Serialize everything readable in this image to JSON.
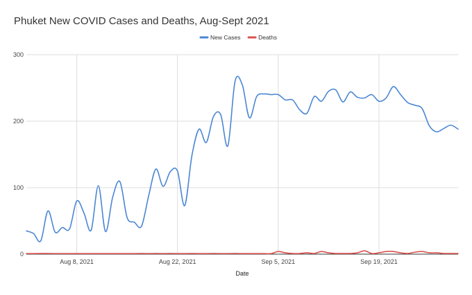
{
  "chart_data": {
    "type": "line",
    "title": "Phuket New COVID Cases and Deaths, Aug-Sept 2021",
    "xlabel": "Date",
    "ylabel": "",
    "ylim": [
      0,
      300
    ],
    "yticks": [
      "0",
      "100",
      "200",
      "300"
    ],
    "xticks": [
      "Aug 8, 2021",
      "Aug 22, 2021",
      "Sep 5, 2021",
      "Sep 19, 2021"
    ],
    "x_start": "2021-08-01",
    "x_end": "2021-09-30",
    "legend_position": "top",
    "grid": true,
    "series": [
      {
        "name": "New Cases",
        "color": "#4a86d4",
        "values": [
          35,
          31,
          20,
          65,
          33,
          40,
          38,
          80,
          62,
          36,
          103,
          34,
          86,
          109,
          55,
          48,
          42,
          88,
          128,
          102,
          124,
          125,
          73,
          148,
          188,
          168,
          207,
          210,
          163,
          260,
          255,
          205,
          237,
          241,
          240,
          240,
          232,
          232,
          217,
          212,
          237,
          230,
          245,
          247,
          229,
          244,
          236,
          235,
          240,
          230,
          235,
          252,
          240,
          228,
          224,
          219,
          193,
          184,
          189,
          194,
          188
        ]
      },
      {
        "name": "Deaths",
        "color": "#d9534f",
        "values": [
          0,
          0,
          1,
          1,
          0,
          0,
          0,
          0,
          0,
          0,
          0,
          0,
          0,
          0,
          0,
          0,
          1,
          0,
          1,
          0,
          1,
          0,
          0,
          1,
          0,
          0,
          1,
          0,
          0,
          1,
          0,
          0,
          0,
          0,
          0,
          4,
          2,
          1,
          1,
          2,
          1,
          4,
          2,
          1,
          1,
          1,
          2,
          5,
          1,
          2,
          4,
          4,
          2,
          1,
          3,
          4,
          2,
          2,
          1,
          1,
          1
        ]
      }
    ]
  }
}
